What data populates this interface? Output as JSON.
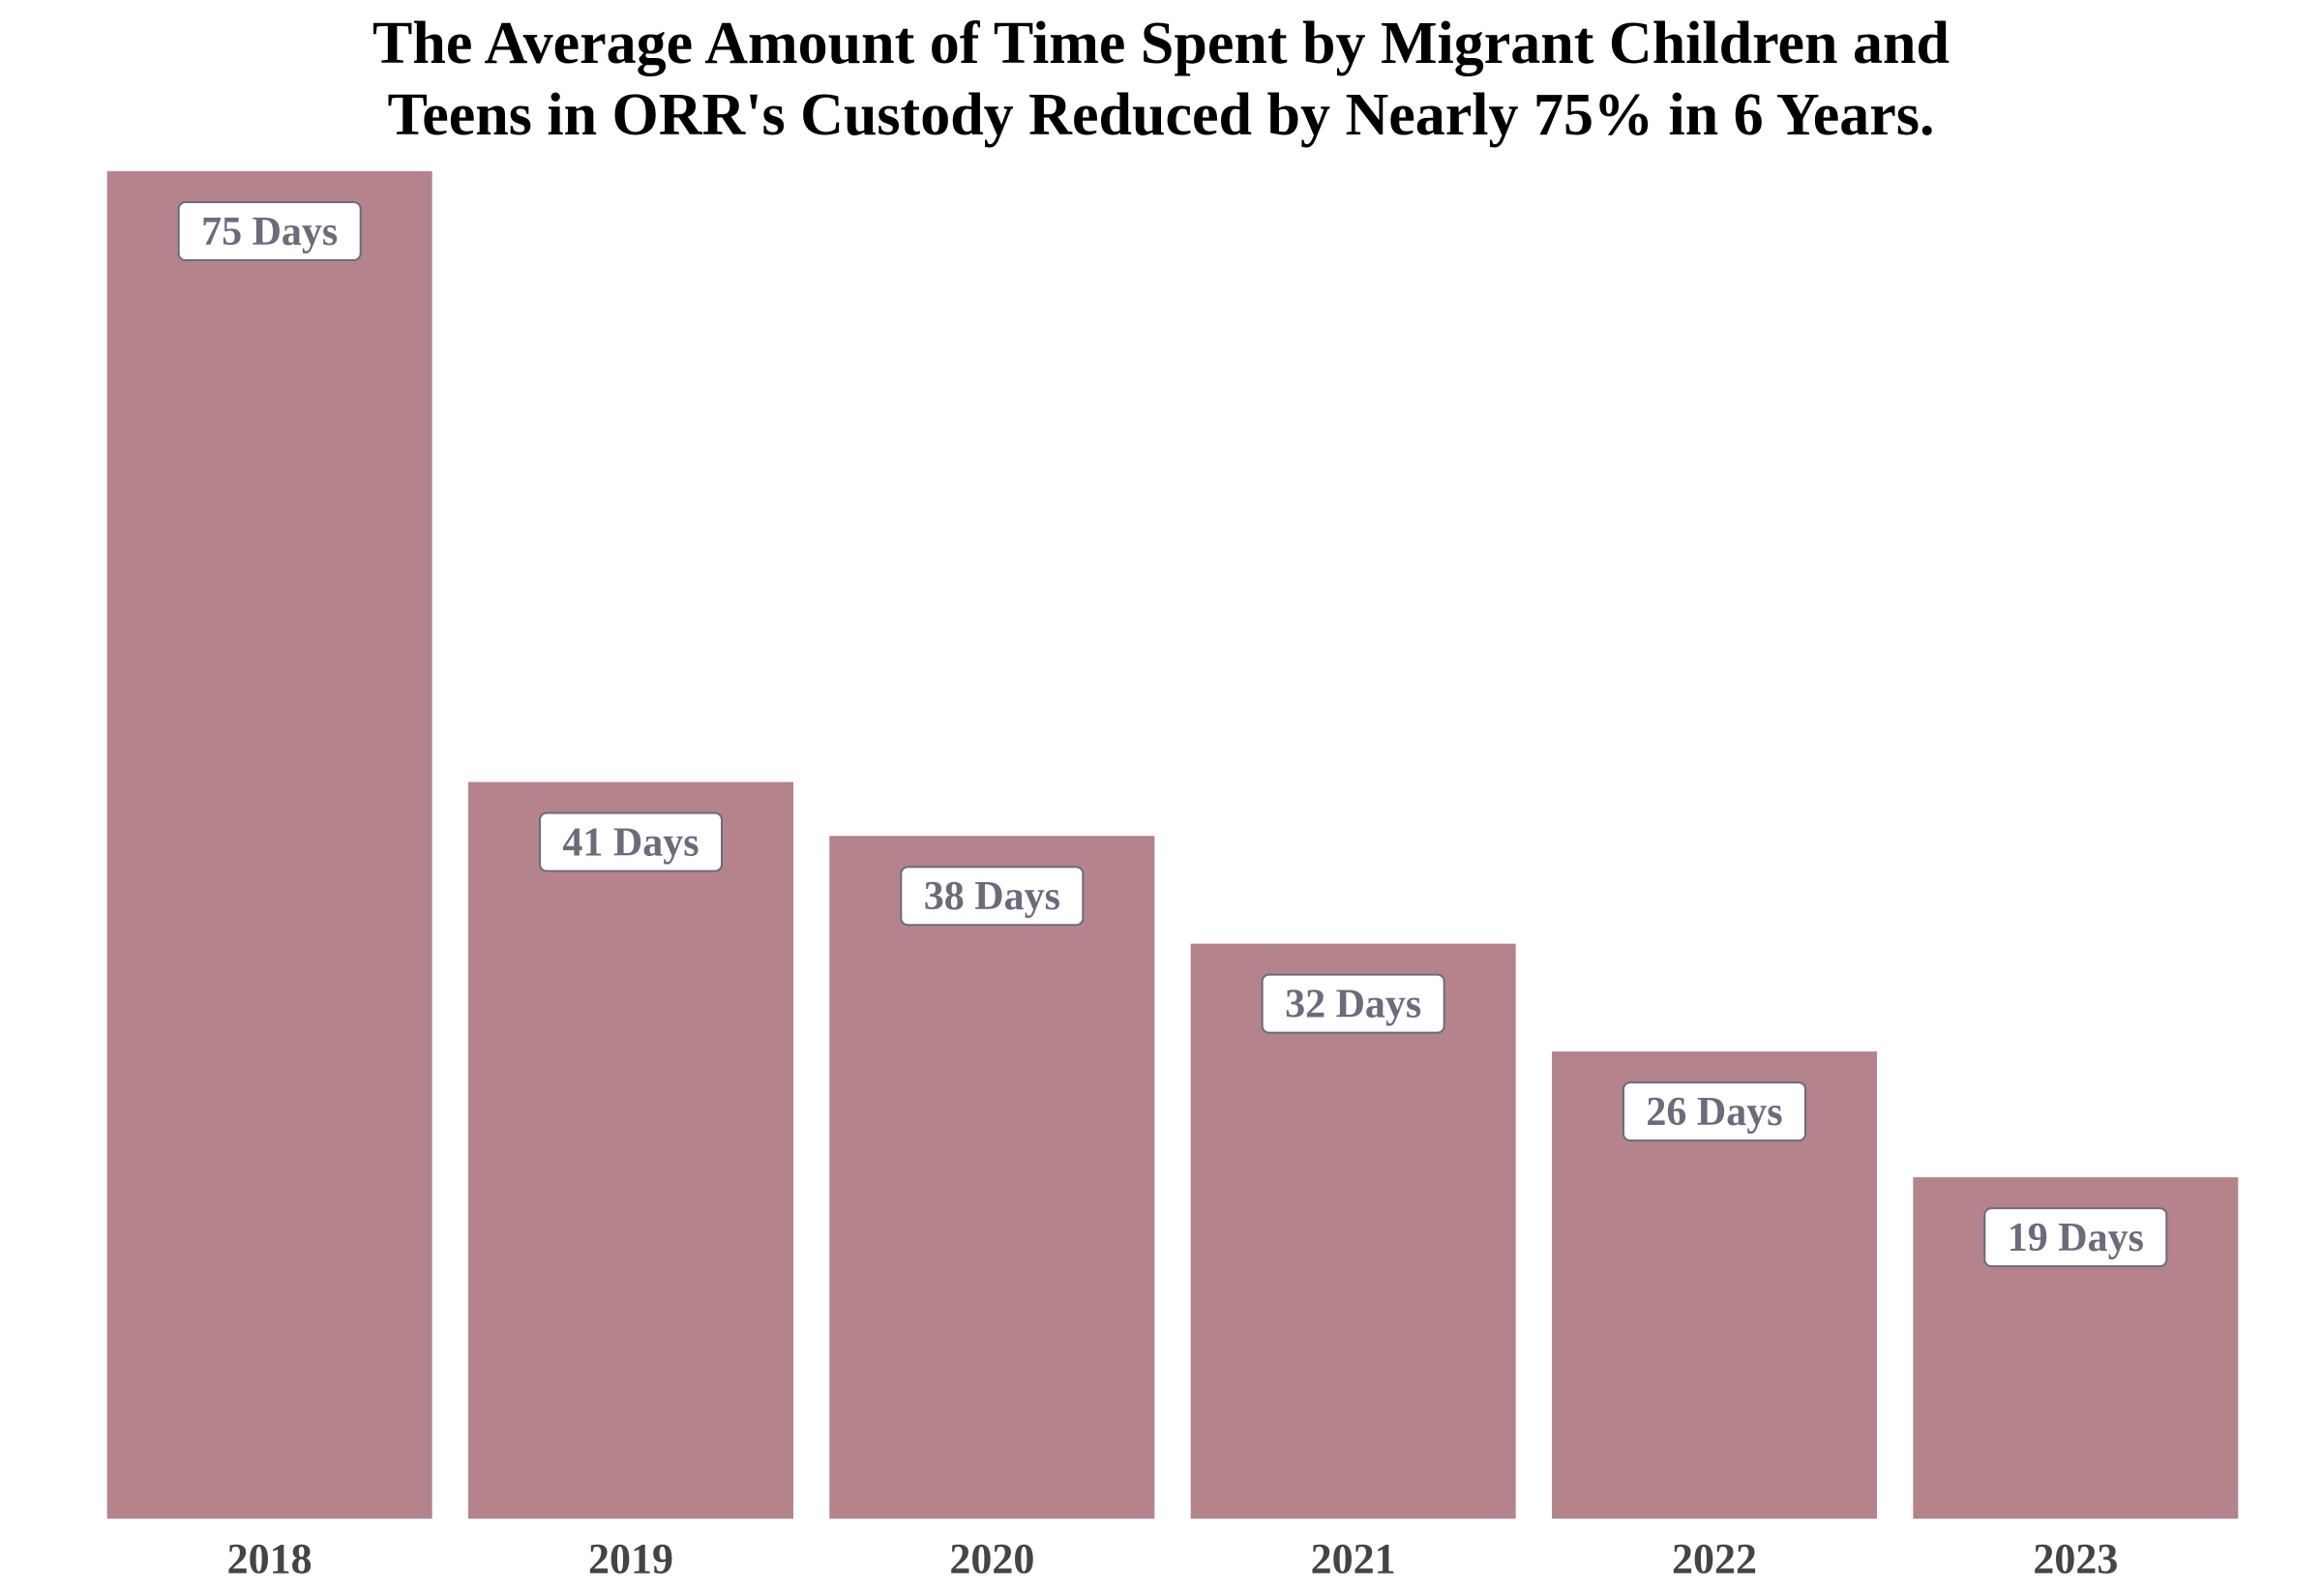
{
  "chart_data": {
    "type": "bar",
    "title": "The Average Amount of Time Spent by Migrant Children and\nTeens in ORR's Custody Reduced by Nearly 75% in 6 Years.",
    "xlabel": "",
    "ylabel": "",
    "categories": [
      "2018",
      "2019",
      "2020",
      "2021",
      "2022",
      "2023"
    ],
    "values": [
      75,
      41,
      38,
      32,
      26,
      19
    ],
    "data_labels": [
      "75 Days",
      "41 Days",
      "38 Days",
      "32 Days",
      "26 Days",
      "19 Days"
    ],
    "ylim": [
      0,
      75
    ],
    "grid": false,
    "legend": "none",
    "bar_color": "#b4838c",
    "label_text_color": "#6b6b7b",
    "label_border_color": "#6b6b7b",
    "tick_color": "#444444"
  }
}
